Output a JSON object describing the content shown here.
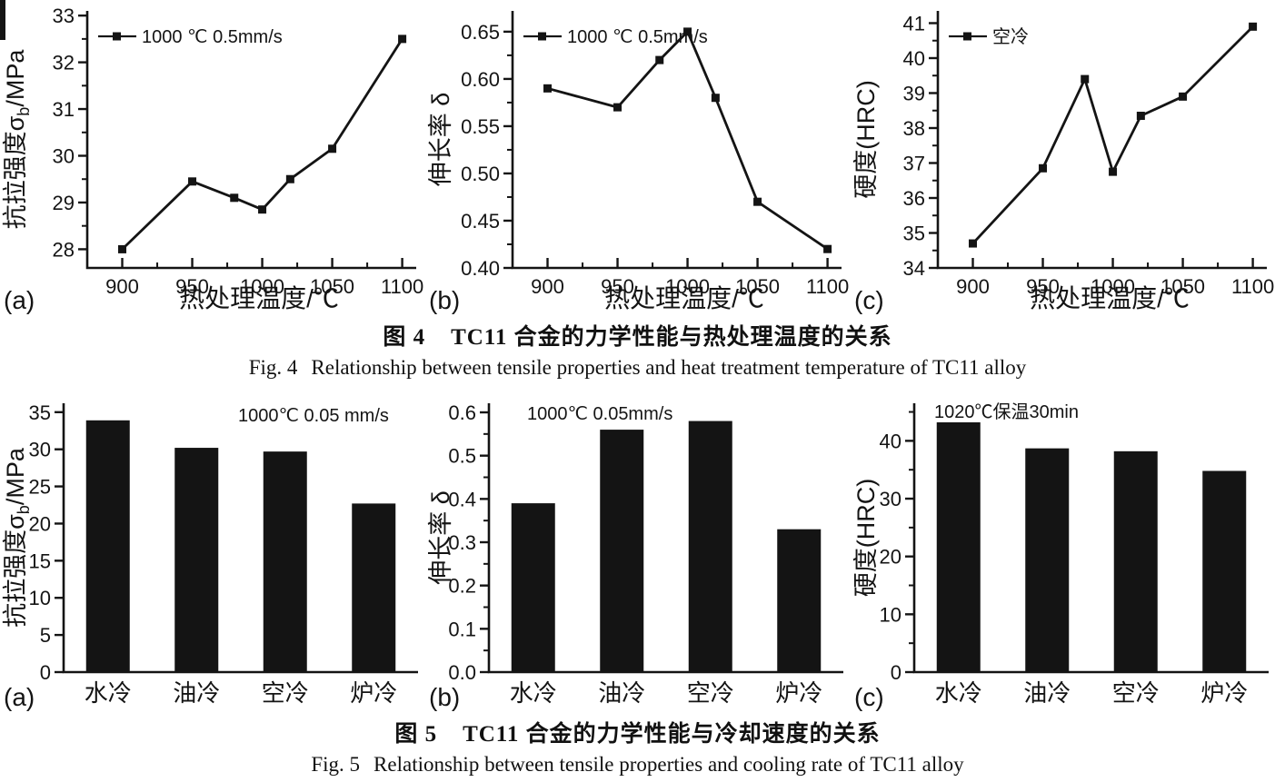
{
  "page": {
    "background": "#ffffff",
    "ink": "#141414"
  },
  "figures": [
    {
      "id": "fig4",
      "caption_zh_label": "图 4",
      "caption_zh_text": "TC11 合金的力学性能与热处理温度的关系",
      "caption_en_label": "Fig. 4",
      "caption_en_text": "Relationship between tensile properties and heat treatment temperature of TC11 alloy"
    },
    {
      "id": "fig5",
      "caption_zh_label": "图 5",
      "caption_zh_text": "TC11 合金的力学性能与冷却速度的关系",
      "caption_en_label": "Fig. 5",
      "caption_en_text": "Relationship between tensile properties and cooling rate of TC11 alloy"
    }
  ],
  "chart_data": [
    {
      "figure": "fig4",
      "panel_label": "(a)",
      "type": "line",
      "legend": "1000 ℃ 0.5mm/s",
      "xlabel": "热处理温度/℃",
      "ylabel": "抗拉强度σb/MPa",
      "ylabel_parts": {
        "main": "抗拉强度σ",
        "sub": "b",
        "after": "/MPa"
      },
      "x": [
        900,
        950,
        980,
        1000,
        1020,
        1050,
        1100
      ],
      "y": [
        28.0,
        29.45,
        29.1,
        28.85,
        29.5,
        30.15,
        32.5
      ],
      "xlim": [
        875,
        1110
      ],
      "ylim": [
        27.6,
        33.1
      ],
      "xticks": [
        900,
        950,
        1000,
        1050,
        1100
      ],
      "xminor": [
        925,
        975,
        1025,
        1075
      ],
      "yticks": [
        28,
        29,
        30,
        31,
        32,
        33
      ],
      "yminor": [
        28.5,
        29.5,
        30.5,
        31.5,
        32.5
      ],
      "ydec": 0
    },
    {
      "figure": "fig4",
      "panel_label": "(b)",
      "type": "line",
      "legend": "1000 ℃ 0.5mm/s",
      "xlabel": "热处理温度/℃",
      "ylabel": "伸长率 δ",
      "ylabel_parts": {
        "main": "伸长率 δ"
      },
      "x": [
        900,
        950,
        980,
        1000,
        1020,
        1050,
        1100
      ],
      "y": [
        0.59,
        0.57,
        0.62,
        0.65,
        0.58,
        0.47,
        0.42
      ],
      "xlim": [
        875,
        1110
      ],
      "ylim": [
        0.4,
        0.672
      ],
      "xticks": [
        900,
        950,
        1000,
        1050,
        1100
      ],
      "xminor": [
        925,
        975,
        1025,
        1075
      ],
      "yticks": [
        0.4,
        0.45,
        0.5,
        0.55,
        0.6,
        0.65
      ],
      "yminor": [
        0.425,
        0.475,
        0.525,
        0.575,
        0.625
      ],
      "ydec": 2
    },
    {
      "figure": "fig4",
      "panel_label": "(c)",
      "type": "line",
      "legend": "空冷",
      "xlabel": "热处理温度/℃",
      "ylabel": "硬度(HRC)",
      "ylabel_parts": {
        "main": "硬度(HRC)"
      },
      "x": [
        900,
        950,
        980,
        1000,
        1020,
        1050,
        1100
      ],
      "y": [
        34.7,
        36.85,
        39.4,
        36.75,
        38.35,
        38.9,
        40.9
      ],
      "xlim": [
        875,
        1110
      ],
      "ylim": [
        34,
        41.35
      ],
      "xticks": [
        900,
        950,
        1000,
        1050,
        1100
      ],
      "xminor": [
        925,
        975,
        1025,
        1075
      ],
      "yticks": [
        34,
        35,
        36,
        37,
        38,
        39,
        40,
        41
      ],
      "yminor": [
        34.5,
        35.5,
        36.5,
        37.5,
        38.5,
        39.5,
        40.5
      ],
      "ydec": 0
    },
    {
      "figure": "fig5",
      "panel_label": "(a)",
      "type": "bar",
      "annotation": "1000℃ 0.05 mm/s",
      "xlabel": "",
      "ylabel": "抗拉强度σb/MPa",
      "ylabel_parts": {
        "main": "抗拉强度σ",
        "sub": "b",
        "after": "/MPa"
      },
      "categories": [
        "水冷",
        "油冷",
        "空冷",
        "炉冷"
      ],
      "values": [
        33.9,
        30.2,
        29.7,
        22.7
      ],
      "ylim": [
        0,
        36.2
      ],
      "yticks": [
        0,
        5,
        10,
        15,
        20,
        25,
        30,
        35
      ],
      "ydec": 0
    },
    {
      "figure": "fig5",
      "panel_label": "(b)",
      "type": "bar",
      "annotation": "1000℃ 0.05mm/s",
      "xlabel": "",
      "ylabel": "伸长率 δ",
      "ylabel_parts": {
        "main": "伸长率 δ"
      },
      "categories": [
        "水冷",
        "油冷",
        "空冷",
        "炉冷"
      ],
      "values": [
        0.39,
        0.56,
        0.58,
        0.33
      ],
      "ylim": [
        0,
        0.621
      ],
      "yticks": [
        0,
        0.1,
        0.2,
        0.3,
        0.4,
        0.5,
        0.6
      ],
      "yminor": [
        0.05,
        0.15,
        0.25,
        0.35,
        0.45,
        0.55
      ],
      "ydec": 1
    },
    {
      "figure": "fig5",
      "panel_label": "(c)",
      "type": "bar",
      "annotation": "1020℃保温30min",
      "xlabel": "",
      "ylabel": "硬度(HRC)",
      "ylabel_parts": {
        "main": "硬度(HRC)"
      },
      "categories": [
        "水冷",
        "油冷",
        "空冷",
        "炉冷"
      ],
      "values": [
        43.2,
        38.7,
        38.2,
        34.8
      ],
      "ylim": [
        0,
        46.5
      ],
      "yticks": [
        0,
        10,
        20,
        30,
        40
      ],
      "yminor": [
        5,
        15,
        25,
        35,
        45
      ],
      "ydec": 0
    }
  ]
}
